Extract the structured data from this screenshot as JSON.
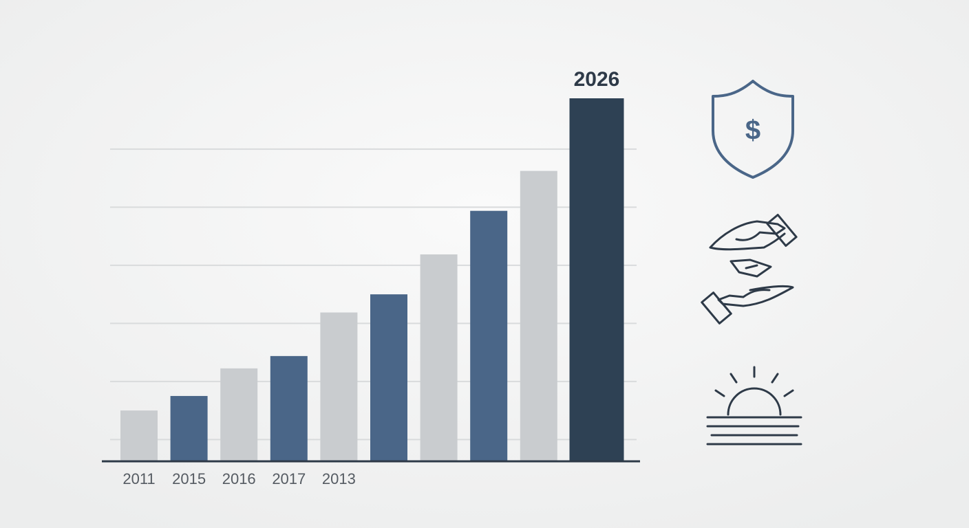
{
  "chart_data": {
    "type": "bar",
    "categories": [
      "2011",
      "2015",
      "2016",
      "2017",
      "2013",
      null,
      null,
      null,
      null,
      "2026"
    ],
    "values": [
      14,
      18,
      25.6,
      29,
      41,
      46,
      57,
      69,
      80,
      100
    ],
    "colors": [
      "#c9cccf",
      "#4a6688",
      "#c9cccf",
      "#4a6688",
      "#c9cccf",
      "#4a6688",
      "#c9cccf",
      "#4a6688",
      "#c9cccf",
      "#2e4154"
    ],
    "ylim": [
      0,
      100
    ],
    "gridlines": [
      6,
      22,
      38,
      54,
      70,
      86
    ],
    "grid": true
  }
}
